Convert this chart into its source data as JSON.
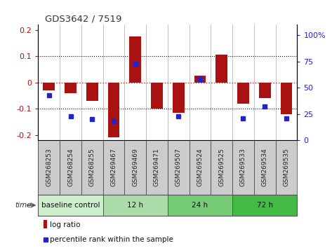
{
  "title": "GDS3642 / 7519",
  "samples": [
    "GSM268253",
    "GSM268254",
    "GSM268255",
    "GSM269467",
    "GSM269469",
    "GSM269471",
    "GSM269507",
    "GSM269524",
    "GSM269525",
    "GSM269533",
    "GSM269534",
    "GSM269535"
  ],
  "log_ratio": [
    -0.03,
    -0.04,
    -0.07,
    -0.21,
    0.175,
    -0.1,
    -0.115,
    0.025,
    0.105,
    -0.08,
    -0.06,
    -0.12
  ],
  "percentile_rank_values": [
    38,
    18,
    15,
    13,
    68,
    null,
    18,
    53,
    null,
    16,
    27,
    16
  ],
  "bar_color": "#aa1111",
  "dot_color": "#2222cc",
  "zero_line_color": "#cc2222",
  "dotted_line_color": "#000000",
  "bg_color": "#ffffff",
  "label_bg_color": "#cccccc",
  "ylim_left": [
    -0.22,
    0.22
  ],
  "ylim_right": [
    0,
    110
  ],
  "yticks_left": [
    -0.2,
    -0.1,
    0,
    0.1,
    0.2
  ],
  "ytick_labels_left": [
    "-0.2",
    "-0.1",
    "0",
    "0.1",
    "0.2"
  ],
  "yticks_right": [
    0,
    25,
    50,
    75,
    100
  ],
  "ytick_labels_right": [
    "0",
    "25",
    "50",
    "75",
    "100%"
  ],
  "groups": [
    {
      "label": "baseline control",
      "start": 0,
      "end": 3,
      "color": "#cceecc"
    },
    {
      "label": "12 h",
      "start": 3,
      "end": 6,
      "color": "#aaddaa"
    },
    {
      "label": "24 h",
      "start": 6,
      "end": 9,
      "color": "#77cc77"
    },
    {
      "label": "72 h",
      "start": 9,
      "end": 12,
      "color": "#44bb44"
    }
  ],
  "time_label": "time",
  "legend_items": [
    {
      "label": "log ratio",
      "color": "#aa1111",
      "type": "rect"
    },
    {
      "label": "percentile rank within the sample",
      "color": "#2222cc",
      "type": "square"
    }
  ]
}
